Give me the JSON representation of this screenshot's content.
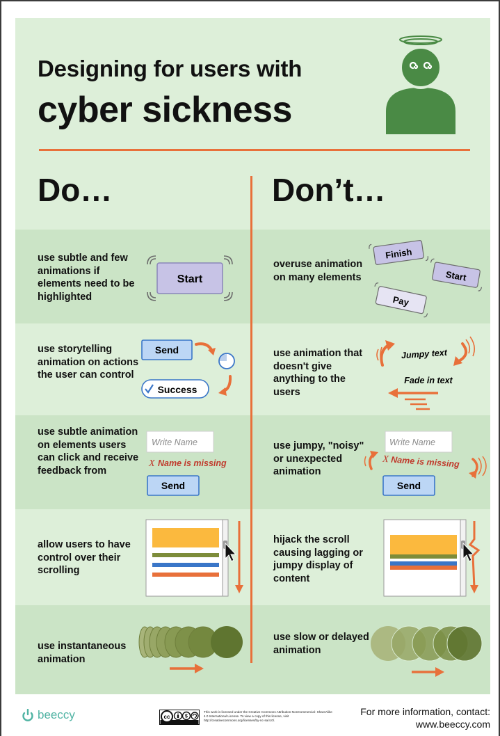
{
  "header": {
    "title_line1": "Designing for users with",
    "title_line2": "cyber sickness",
    "do_heading": "Do…",
    "dont_heading": "Don’t…"
  },
  "rows": [
    {
      "do_text": "use subtle and few animations if elements need to be highlighted",
      "dont_text": "overuse animation on many elements",
      "do_labels": {
        "start": "Start"
      },
      "dont_labels": {
        "finish": "Finish",
        "start": "Start",
        "pay": "Pay"
      }
    },
    {
      "do_text": "use storytelling animation on actions the user can control",
      "dont_text": "use animation that doesn't give anything to the users",
      "do_labels": {
        "send": "Send",
        "success": "Success"
      },
      "dont_labels": {
        "jumpy": "Jumpy text",
        "fade": "Fade in text"
      }
    },
    {
      "do_text": "use subtle animation on elements users can click and receive feedback from",
      "dont_text": "use jumpy, \"noisy\" or unexpected animation",
      "do_labels": {
        "placeholder": "Write Name",
        "error": "Name is missing",
        "send": "Send"
      },
      "dont_labels": {
        "placeholder": "Write Name",
        "error": "Name is missing",
        "send": "Send"
      }
    },
    {
      "do_text": "allow users to have control over their scrolling",
      "dont_text": "hijack the scroll causing lagging or jumpy display of content"
    },
    {
      "do_text": "use instantaneous animation",
      "dont_text": "use slow or delayed animation"
    }
  ],
  "footer": {
    "brand": "beeccy",
    "license_text": "This work is licensed under the Creative Commons Attribution-NonCommercial- ShareAlike 4.0 International License. To view a copy of this license, visit http://creativecommons.org/licenses/by-nc-sa/4.0/.",
    "contact_line1": "For more information, contact:",
    "contact_line2": "www.beeccy.com"
  },
  "colors": {
    "accent_orange": "#e8703a",
    "band_dark": "#cbe4c6",
    "band_light": "#ddefd9",
    "avatar_green": "#4a8a45",
    "button_lavender": "#c7c3e6",
    "button_blue": "#bcd6f5"
  },
  "icons": [
    "dizzy-user-icon",
    "checkmark-icon",
    "mouse-cursor-icon",
    "creative-commons-icon",
    "beeccy-logo-icon"
  ]
}
